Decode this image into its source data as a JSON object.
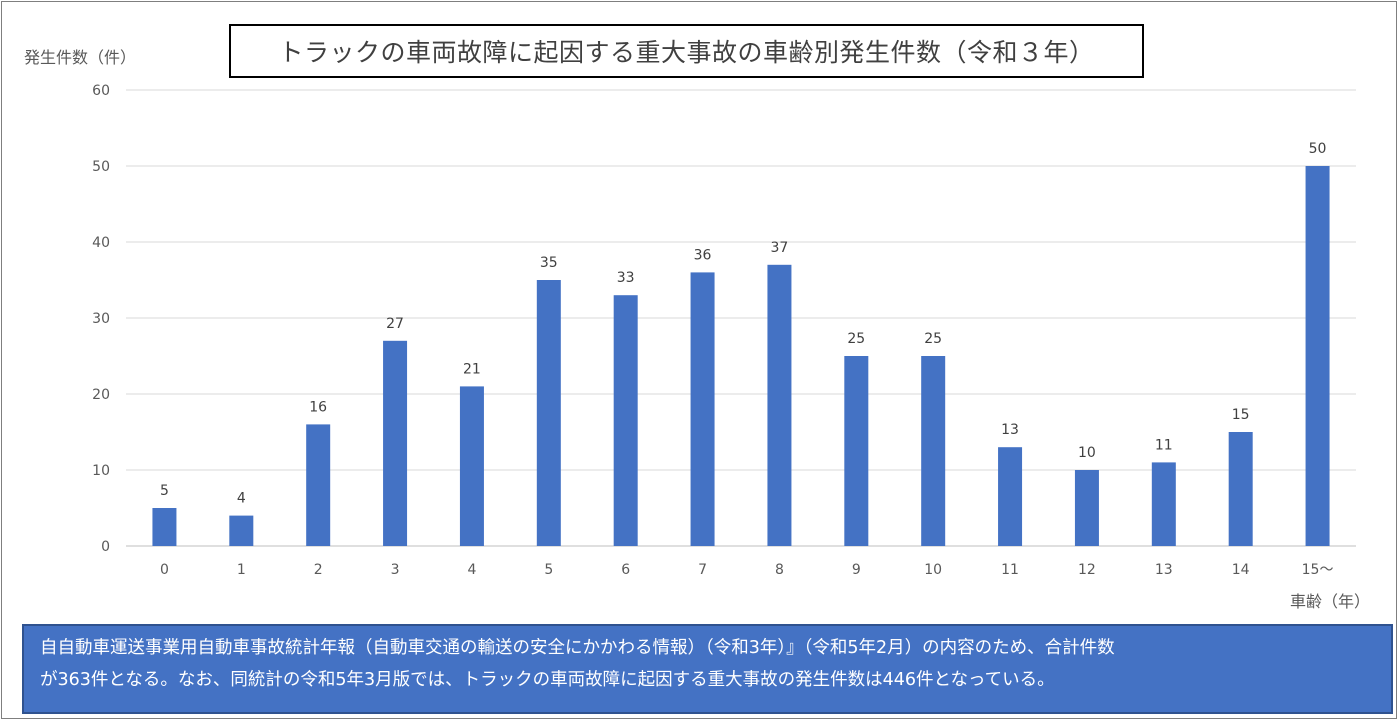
{
  "chart_data": {
    "type": "bar",
    "title": "トラックの車両故障に起因する重大事故の車齢別発生件数（令和３年）",
    "ylabel": "発生件数（件）",
    "xlabel": "車齢（年）",
    "categories": [
      "0",
      "1",
      "2",
      "3",
      "4",
      "5",
      "6",
      "7",
      "8",
      "9",
      "10",
      "11",
      "12",
      "13",
      "14",
      "15～"
    ],
    "values": [
      5,
      4,
      16,
      27,
      21,
      35,
      33,
      36,
      37,
      25,
      25,
      13,
      10,
      11,
      15,
      50
    ],
    "ylim": [
      0,
      60
    ],
    "yticks": [
      0,
      10,
      20,
      30,
      40,
      50,
      60
    ],
    "grid": true,
    "bar_color": "#4472c4"
  },
  "note": {
    "line1": "自自動車運送事業用自動車事故統計年報（自動車交通の輸送の安全にかかわる情報）（令和3年）』（令和5年2月）の内容のため、合計件数",
    "line2": "が363件となる。なお、同統計の令和5年3月版では、トラックの車両故障に起因する重大事故の発生件数は446件となっている。"
  },
  "colors": {
    "bar": "#4472c4",
    "note_background": "#4472c4",
    "grid": "#d9d9d9",
    "axis_text": "#595959"
  }
}
